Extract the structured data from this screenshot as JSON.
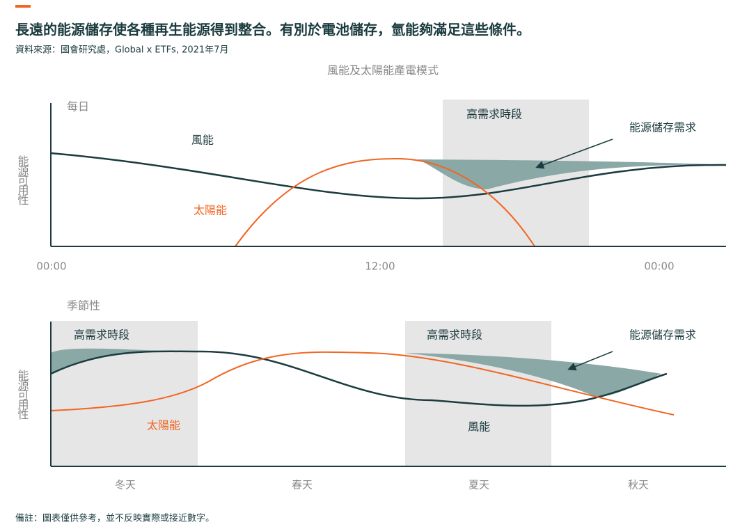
{
  "header": {
    "title": "長遠的能源儲存使各種再生能源得到整合。有別於電池儲存，氫能夠滿足這些條件。",
    "source": "資料來源：國會研究處，Global x ETFs, 2021年7月",
    "chart_title": "風能及太陽能產電模式"
  },
  "daily": {
    "label": "每日",
    "y_label": "能源可用性",
    "wind": "風能",
    "solar": "太陽能",
    "peak": "高需求時段",
    "storage": "能源儲存需求",
    "x_labels": [
      "00:00",
      "12:00",
      "00:00"
    ]
  },
  "seasonal": {
    "label": "季節性",
    "y_label": "能源可用性",
    "peak_1": "高需求時段",
    "peak_2": "高需求時段",
    "storage": "能源儲存需求",
    "solar": "太陽能",
    "wind": "風能",
    "x_labels": [
      "冬天",
      "春天",
      "夏天",
      "秋天"
    ]
  },
  "note": "備註：圖表僅供參考，並不反映實際或接近數字。"
}
